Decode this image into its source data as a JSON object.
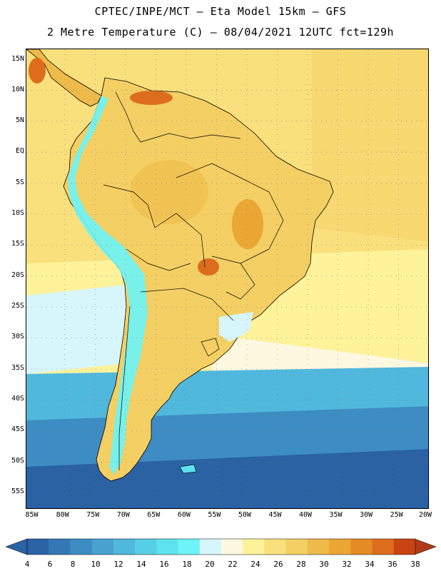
{
  "header": {
    "title_line1": "CPTEC/INPE/MCT –  Eta Model 15km – GFS",
    "title_line2": "2 Metre Temperature (C) – 08/04/2021 12UTC fct=129h"
  },
  "map": {
    "lat_labels": [
      "15N",
      "10N",
      "5N",
      "EQ",
      "5S",
      "10S",
      "15S",
      "20S",
      "25S",
      "30S",
      "35S",
      "40S",
      "45S",
      "50S",
      "55S"
    ],
    "lon_labels": [
      "85W",
      "80W",
      "75W",
      "70W",
      "65W",
      "60W",
      "55W",
      "50W",
      "45W",
      "40W",
      "35W",
      "30W",
      "25W",
      "20W"
    ],
    "extent": {
      "lon_min": -86.3,
      "lon_max": -19.9,
      "lat_min": -58.2,
      "lat_max": 16.0
    }
  },
  "colorbar": {
    "values": [
      "4",
      "6",
      "8",
      "10",
      "12",
      "14",
      "16",
      "18",
      "20",
      "22",
      "24",
      "26",
      "28",
      "30",
      "32",
      "34",
      "36",
      "38"
    ],
    "colors": [
      "#2a62a4",
      "#3378b5",
      "#3d8cc3",
      "#48a1cf",
      "#50b8dc",
      "#57cfe6",
      "#5ee3ee",
      "#6cf4f8",
      "#d6f6fb",
      "#fff8e0",
      "#fef29a",
      "#f9e07c",
      "#f4cf63",
      "#eeba4a",
      "#eba633",
      "#e58b25",
      "#dd6d1c",
      "#c94413",
      "#b03a18"
    ],
    "low_color": "#2a62a4",
    "high_color": "#b03a18"
  },
  "colors": {
    "ocean_tropical": "#f9e07c",
    "ocean_subtropical": "#fef29a",
    "ocean_cool": "#d6f6fb",
    "ocean_cold": "#50b8dc",
    "ocean_colder": "#3d8cc3",
    "ocean_coldest": "#2a62a4",
    "land_hot": "#f4cf63",
    "land_hotter": "#eeba4a",
    "land_hottest": "#dd6d1c",
    "andes": "#6cf4f8",
    "border": "#000000"
  }
}
